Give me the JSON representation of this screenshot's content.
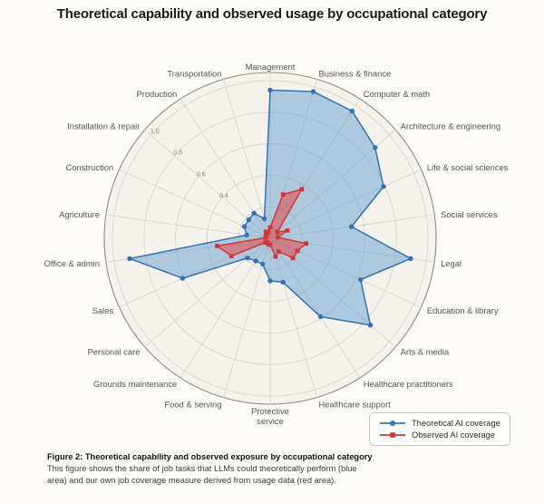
{
  "title": "Theoretical capability and observed usage by occupational category",
  "chart_data": {
    "type": "radar",
    "start_angle": "top",
    "direction": "clockwise",
    "grid": true,
    "rmax": 1.05,
    "r_ticks": [
      0.2,
      0.4,
      0.6,
      0.8,
      1.0
    ],
    "r_tick_labels": [
      "0.4",
      "0.6",
      "0.8",
      "1.0"
    ],
    "legend_position": "bottom-right",
    "background_color": "#f6f3ed",
    "grid_color": "#dbd7cf",
    "categories": [
      "Management",
      "Business & finance",
      "Computer & math",
      "Architecture & engineering",
      "Life & social sciences",
      "Social services",
      "Legal",
      "Education & library",
      "Arts & media",
      "Healthcare practitioners",
      "Healthcare support",
      "Protective service",
      "Food & serving",
      "Grounds maintenance",
      "Personal care",
      "Sales",
      "Office & admin",
      "Agriculture",
      "Construction",
      "Installation & repair",
      "Production",
      "Transportation"
    ],
    "series": [
      {
        "name": "Theoretical AI coverage",
        "marker": "circle",
        "line_color": "#2f74b5",
        "fill_color": "rgba(86,148,205,0.45)",
        "values": [
          0.94,
          0.97,
          0.96,
          0.88,
          0.79,
          0.52,
          0.9,
          0.63,
          0.84,
          0.59,
          0.29,
          0.27,
          0.17,
          0.17,
          0.19,
          0.61,
          0.9,
          0.15,
          0.18,
          0.18,
          0.19,
          0.13
        ]
      },
      {
        "name": "Observed AI coverage",
        "marker": "square",
        "line_color": "#d23737",
        "fill_color": "rgba(229,72,72,0.55)",
        "values": [
          0.07,
          0.29,
          0.37,
          0.06,
          0.12,
          0.05,
          0.23,
          0.19,
          0.19,
          0.1,
          0.12,
          0.04,
          0.04,
          0.03,
          0.04,
          0.27,
          0.34,
          0.03,
          0.03,
          0.03,
          0.05,
          0.04
        ]
      }
    ]
  },
  "legend": {
    "items": [
      {
        "label": "Theoretical AI coverage",
        "marker": "circle",
        "color": "#2f74b5"
      },
      {
        "label": "Observed AI coverage",
        "marker": "square",
        "color": "#d23737"
      }
    ]
  },
  "caption": {
    "bold": "Figure 2: Theoretical capability and observed exposure by occupational category",
    "line1": "This figure shows the share of job tasks that LLMs could theoretically perform (blue",
    "line2": "area) and our own job coverage measure derived from usage data (red area)."
  }
}
